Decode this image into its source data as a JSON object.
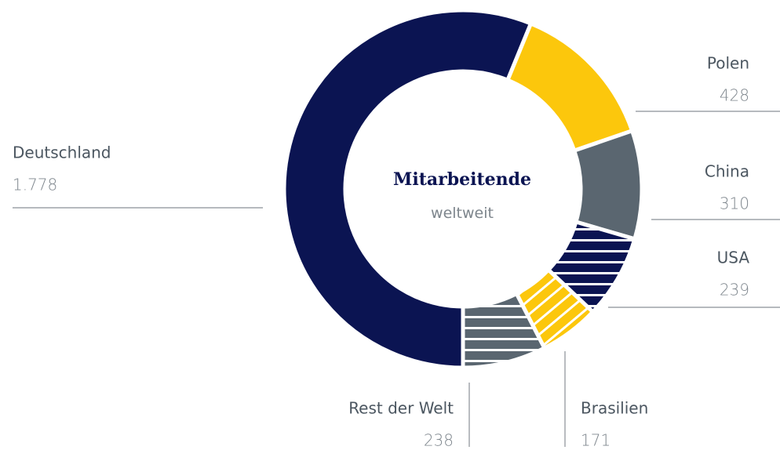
{
  "chart_data": {
    "type": "donut",
    "title": "Mitarbeitende",
    "subtitle": "weltweit",
    "categories": [
      "Deutschland",
      "Polen",
      "China",
      "USA",
      "Brasilien",
      "Rest der Welt"
    ],
    "values": [
      1778,
      428,
      310,
      239,
      171,
      238
    ],
    "value_labels": [
      "1.778",
      "428",
      "310",
      "239",
      "171",
      "238"
    ],
    "colors": [
      "#0b1452",
      "#fcc70c",
      "#5a6670",
      "#0b1452",
      "#fcc70c",
      "#5a6670"
    ],
    "patterns": [
      "solid",
      "solid",
      "solid",
      "horizontal",
      "diagonal",
      "horizontal"
    ]
  }
}
